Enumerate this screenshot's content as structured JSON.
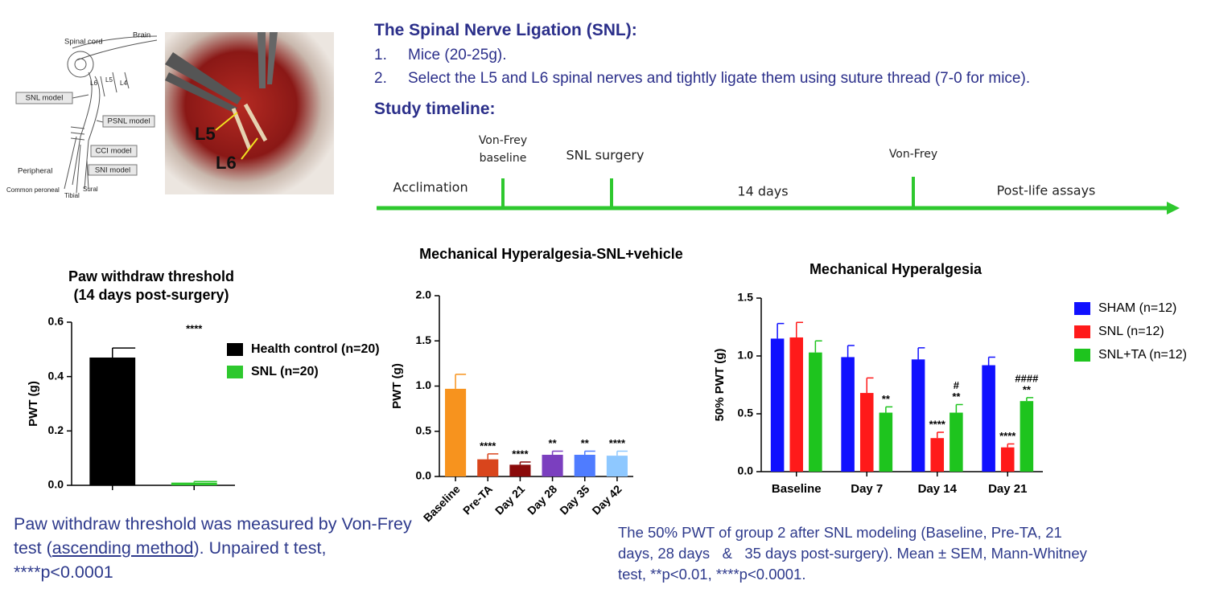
{
  "intro": {
    "title": "The Spinal Nerve Ligation (SNL):",
    "items": [
      {
        "number": "1.",
        "text": "Mice (20-25g)."
      },
      {
        "number": "2.",
        "text": "Select the L5 and L6 spinal nerves and tightly ligate them using suture thread (7-0 for mice)."
      }
    ],
    "timeline_title": "Study timeline:"
  },
  "timeline": {
    "acclimation": "Acclimation",
    "baseline": [
      "Von-Frey",
      "baseline"
    ],
    "surgery": "SNL surgery",
    "duration": "14 days",
    "von_frey": "Von-Frey",
    "post": "Post-life assays"
  },
  "figure": {
    "diagram_labels": [
      "Spinal cord",
      "Brain",
      "SNL model",
      "PSNL model",
      "CCI model",
      "SNI model",
      "Peripheral",
      "Common peroneal",
      "Tibial",
      "Sural",
      "L6",
      "L5",
      "L4"
    ],
    "photo_labels": [
      "L5",
      "L6"
    ]
  },
  "captions": {
    "left": [
      "Paw withdraw threshold was measured by Von-Frey test (",
      "ascending method",
      "). Unpaired t test, ****p<0.0001"
    ],
    "right": "The 50% PWT of group 2 after SNL modeling (Baseline, Pre-TA, 21 days, 28 days   &   35 days post-surgery). Mean ± SEM, Mann-Whitney test, **p<0.01, ****p<0.0001."
  },
  "chart_data": [
    {
      "type": "bar",
      "barmode": "overlay",
      "title": "Paw withdraw threshold",
      "subtitle": "(14 days post-surgery)",
      "y_label": "PWT (g)",
      "categories": [
        null,
        null
      ],
      "series": [
        {
          "name": "Health control (n=20)",
          "color": "#000000",
          "values": [
            0.47,
            null
          ],
          "errors": [
            0.035,
            null
          ]
        },
        {
          "name": "SNL (n=20)",
          "color": "#2ec82e",
          "values": [
            null,
            0.01
          ],
          "errors": [
            null,
            0.004
          ],
          "annotations": [
            null,
            "****"
          ]
        }
      ],
      "ylim": [
        0,
        0.6
      ],
      "yticks": [
        {
          "value": 0,
          "label": "0.0"
        },
        0.2,
        0.4,
        0.6
      ]
    },
    {
      "type": "bar",
      "title": "Mechanical Hyperalgesia-SNL+vehicle",
      "y_label": "PWT (g)",
      "categories": [
        "Baseline",
        "Pre-TA",
        "Day 21",
        "Day 28",
        "Day 35",
        "Day 42"
      ],
      "values": [
        0.97,
        0.19,
        0.13,
        0.24,
        0.24,
        0.23
      ],
      "errors": [
        0.16,
        0.06,
        0.03,
        0.04,
        0.04,
        0.05
      ],
      "colors": [
        "#f7931e",
        "#d9451c",
        "#8b0a0a",
        "#7b3fbf",
        "#4f7cff",
        "#8ec8ff"
      ],
      "annotations": [
        null,
        "****",
        "****",
        "**",
        "**",
        "****"
      ],
      "ylim": [
        0,
        2
      ],
      "yticks": [
        {
          "value": 0,
          "label": "0.0"
        },
        0.5,
        {
          "value": 1,
          "label": "1.0"
        },
        1.5,
        {
          "value": 2,
          "label": "2.0"
        }
      ]
    },
    {
      "type": "bar",
      "barmode": "group",
      "title": "Mechanical Hyperalgesia",
      "y_label": "50% PWT (g)",
      "categories": [
        "Baseline",
        "Day 7",
        "Day 14",
        "Day 21"
      ],
      "series": [
        {
          "name": "SHAM (n=12)",
          "color": "#1010ff",
          "values": [
            1.15,
            0.99,
            0.97,
            0.92
          ],
          "errors": [
            0.13,
            0.1,
            0.1,
            0.07
          ]
        },
        {
          "name": "SNL (n=12)",
          "color": "#ff1a1a",
          "values": [
            1.16,
            0.68,
            0.29,
            0.21
          ],
          "errors": [
            0.13,
            0.13,
            0.05,
            0.03
          ],
          "annotations": [
            null,
            null,
            "****",
            "****"
          ]
        },
        {
          "name": "SNL+TA (n=12)",
          "color": "#1ec41e",
          "values": [
            1.03,
            0.51,
            0.51,
            0.61
          ],
          "errors": [
            0.1,
            0.05,
            0.07,
            0.03
          ],
          "annotations": [
            null,
            "**",
            "**",
            "**"
          ],
          "annotations_hash": [
            null,
            null,
            "#",
            "####"
          ]
        }
      ],
      "ylim": [
        0,
        1.5
      ],
      "yticks": [
        {
          "value": 0,
          "label": "0.0"
        },
        0.5,
        {
          "value": 1,
          "label": "1.0"
        },
        1.5
      ]
    }
  ]
}
